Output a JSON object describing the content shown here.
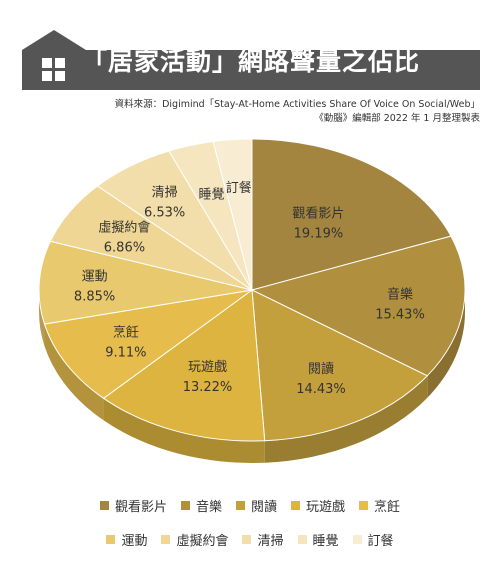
{
  "title": "「居家活動」網路聲量之佔比",
  "source": {
    "line1": "資料來源：Digimind「Stay-At-Home Activities Share Of Voice On Social/Web」",
    "line2": "《動腦》編輯部 2022 年 1 月整理製表"
  },
  "icons": {
    "banner": "house-window-icon"
  },
  "colors": {
    "banner": "#555555",
    "text": "#333333"
  },
  "chart_data": {
    "type": "pie",
    "style": "3d",
    "legend_position": "bottom",
    "slices": [
      {
        "label": "觀看影片",
        "value": 19.19,
        "display": "19.19%",
        "color": "#A3853F"
      },
      {
        "label": "音樂",
        "value": 15.43,
        "display": "15.43%",
        "color": "#B08F3E"
      },
      {
        "label": "閱讀",
        "value": 14.43,
        "display": "14.43%",
        "color": "#C4A03D"
      },
      {
        "label": "玩遊戲",
        "value": 13.22,
        "display": "13.22%",
        "color": "#DDB43F"
      },
      {
        "label": "烹飪",
        "value": 9.11,
        "display": "9.11%",
        "color": "#E6BD4C"
      },
      {
        "label": "運動",
        "value": 8.85,
        "display": "8.85%",
        "color": "#E9C96E"
      },
      {
        "label": "虛擬約會",
        "value": 6.86,
        "display": "6.86%",
        "color": "#EFD694"
      },
      {
        "label": "清掃",
        "value": 6.53,
        "display": "6.53%",
        "color": "#F2DEAA"
      },
      {
        "label": "睡覺",
        "value": 3.46,
        "display": "",
        "color": "#F5E6C0"
      },
      {
        "label": "訂餐",
        "value": 2.92,
        "display": "",
        "color": "#F8ECD2"
      }
    ]
  }
}
